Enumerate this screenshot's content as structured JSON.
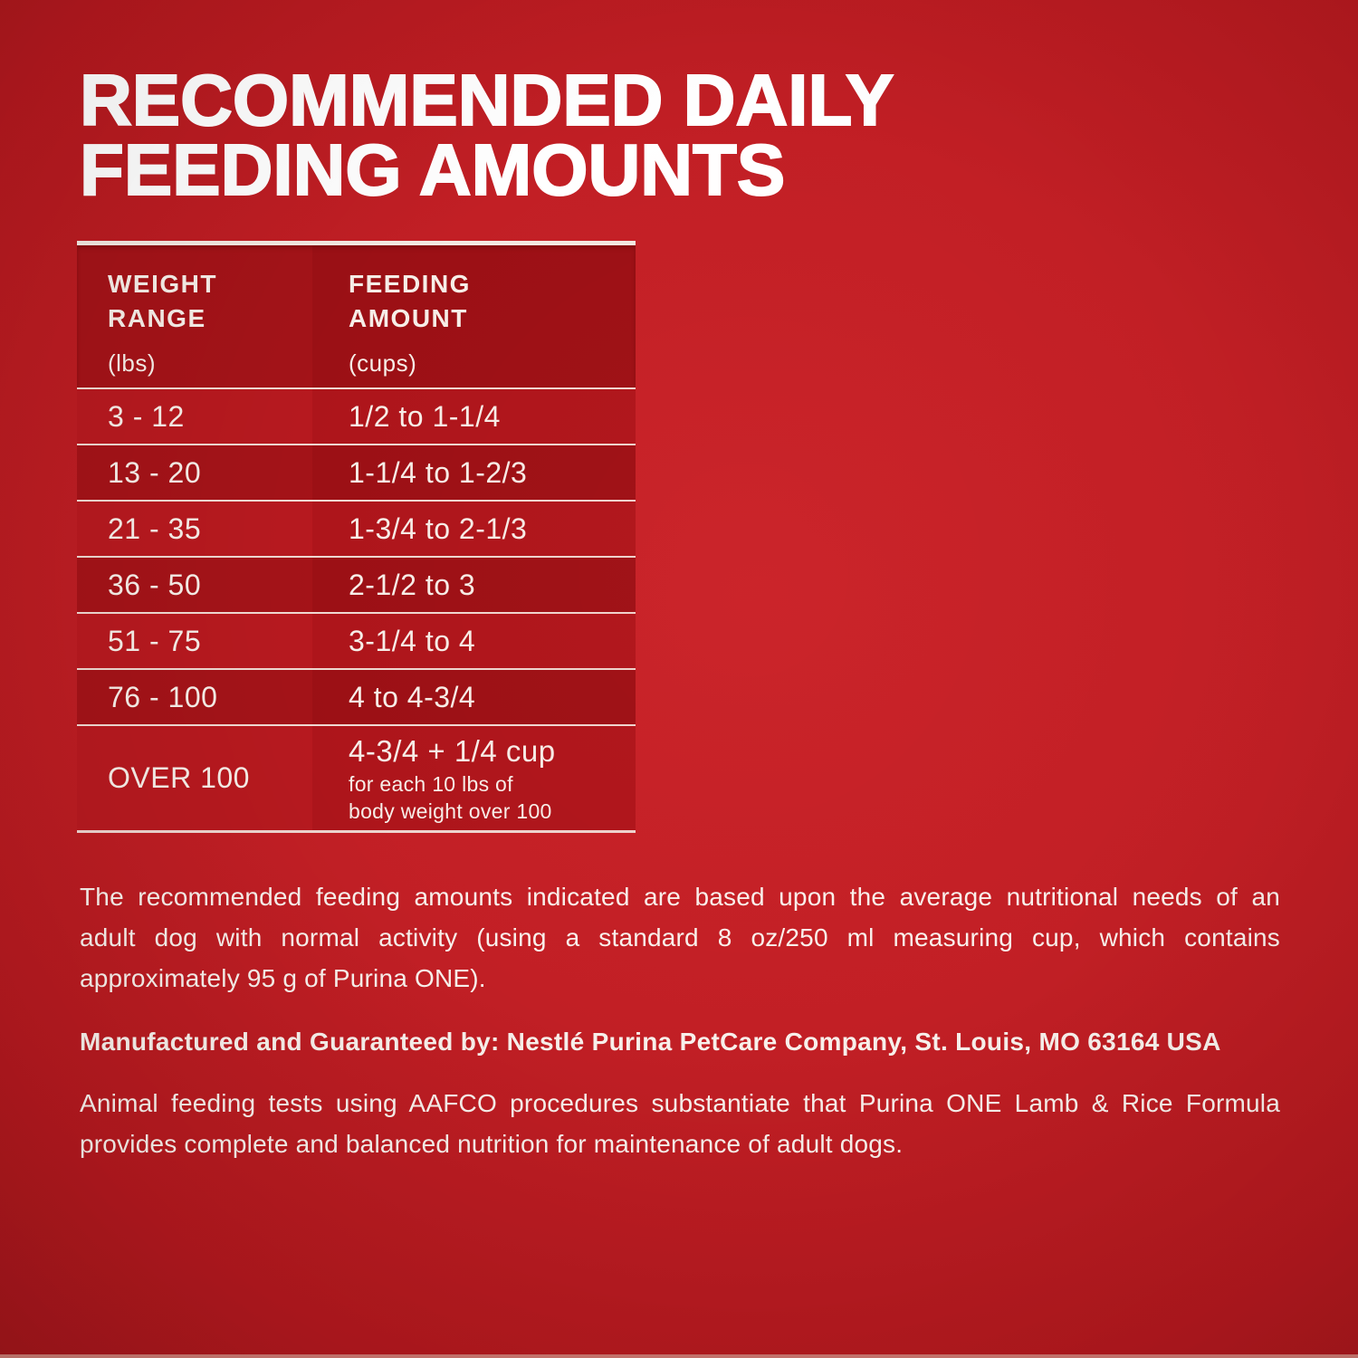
{
  "header": {
    "title_line1": "RECOMMENDED DAILY",
    "title_line2": "FEEDING AMOUNTS"
  },
  "table": {
    "columns": {
      "weight_line1": "WEIGHT",
      "weight_line2": "RANGE",
      "weight_unit": "(lbs)",
      "amount_line1": "FEEDING",
      "amount_line2": "AMOUNT",
      "amount_unit": "(cups)"
    },
    "rows": [
      {
        "weight": "3 - 12",
        "amount": "1/2 to 1-1/4"
      },
      {
        "weight": "13 - 20",
        "amount": "1-1/4 to 1-2/3"
      },
      {
        "weight": "21 - 35",
        "amount": "1-3/4 to 2-1/3"
      },
      {
        "weight": "36 - 50",
        "amount": "2-1/2 to 3"
      },
      {
        "weight": "51 - 75",
        "amount": "3-1/4 to 4"
      },
      {
        "weight": "76 - 100",
        "amount": "4 to 4-3/4"
      },
      {
        "weight": "OVER 100",
        "amount": "4-3/4 + 1/4 cup",
        "note_line1": "for each 10 lbs of",
        "note_line2": "body weight over 100"
      }
    ]
  },
  "notes": {
    "basis_line1": "The recommended feeding amounts indicated are based upon the average nutritional needs of an",
    "basis_line2": "adult dog with normal activity (using a standard 8 oz/250 ml measuring cup, which contains",
    "basis_line3": "approximately 95 g of Purina ONE).",
    "manufacturer": "Manufactured and Guaranteed by: Nestlé Purina PetCare Company, St. Louis, MO 63164 USA",
    "aafco_line1": "Animal feeding tests using AAFCO procedures substantiate that Purina ONE Lamb & Rice Formula",
    "aafco_line2": "provides complete and balanced nutrition for maintenance of adult dogs."
  },
  "colors": {
    "background_center": "#c82228",
    "background_edge": "#9e151a",
    "row_dark": "#a41318",
    "row_light": "#b7191f",
    "separator_line": "#f3e9e2",
    "table_text": "#f7eee8",
    "title_text": "#ffffff"
  }
}
